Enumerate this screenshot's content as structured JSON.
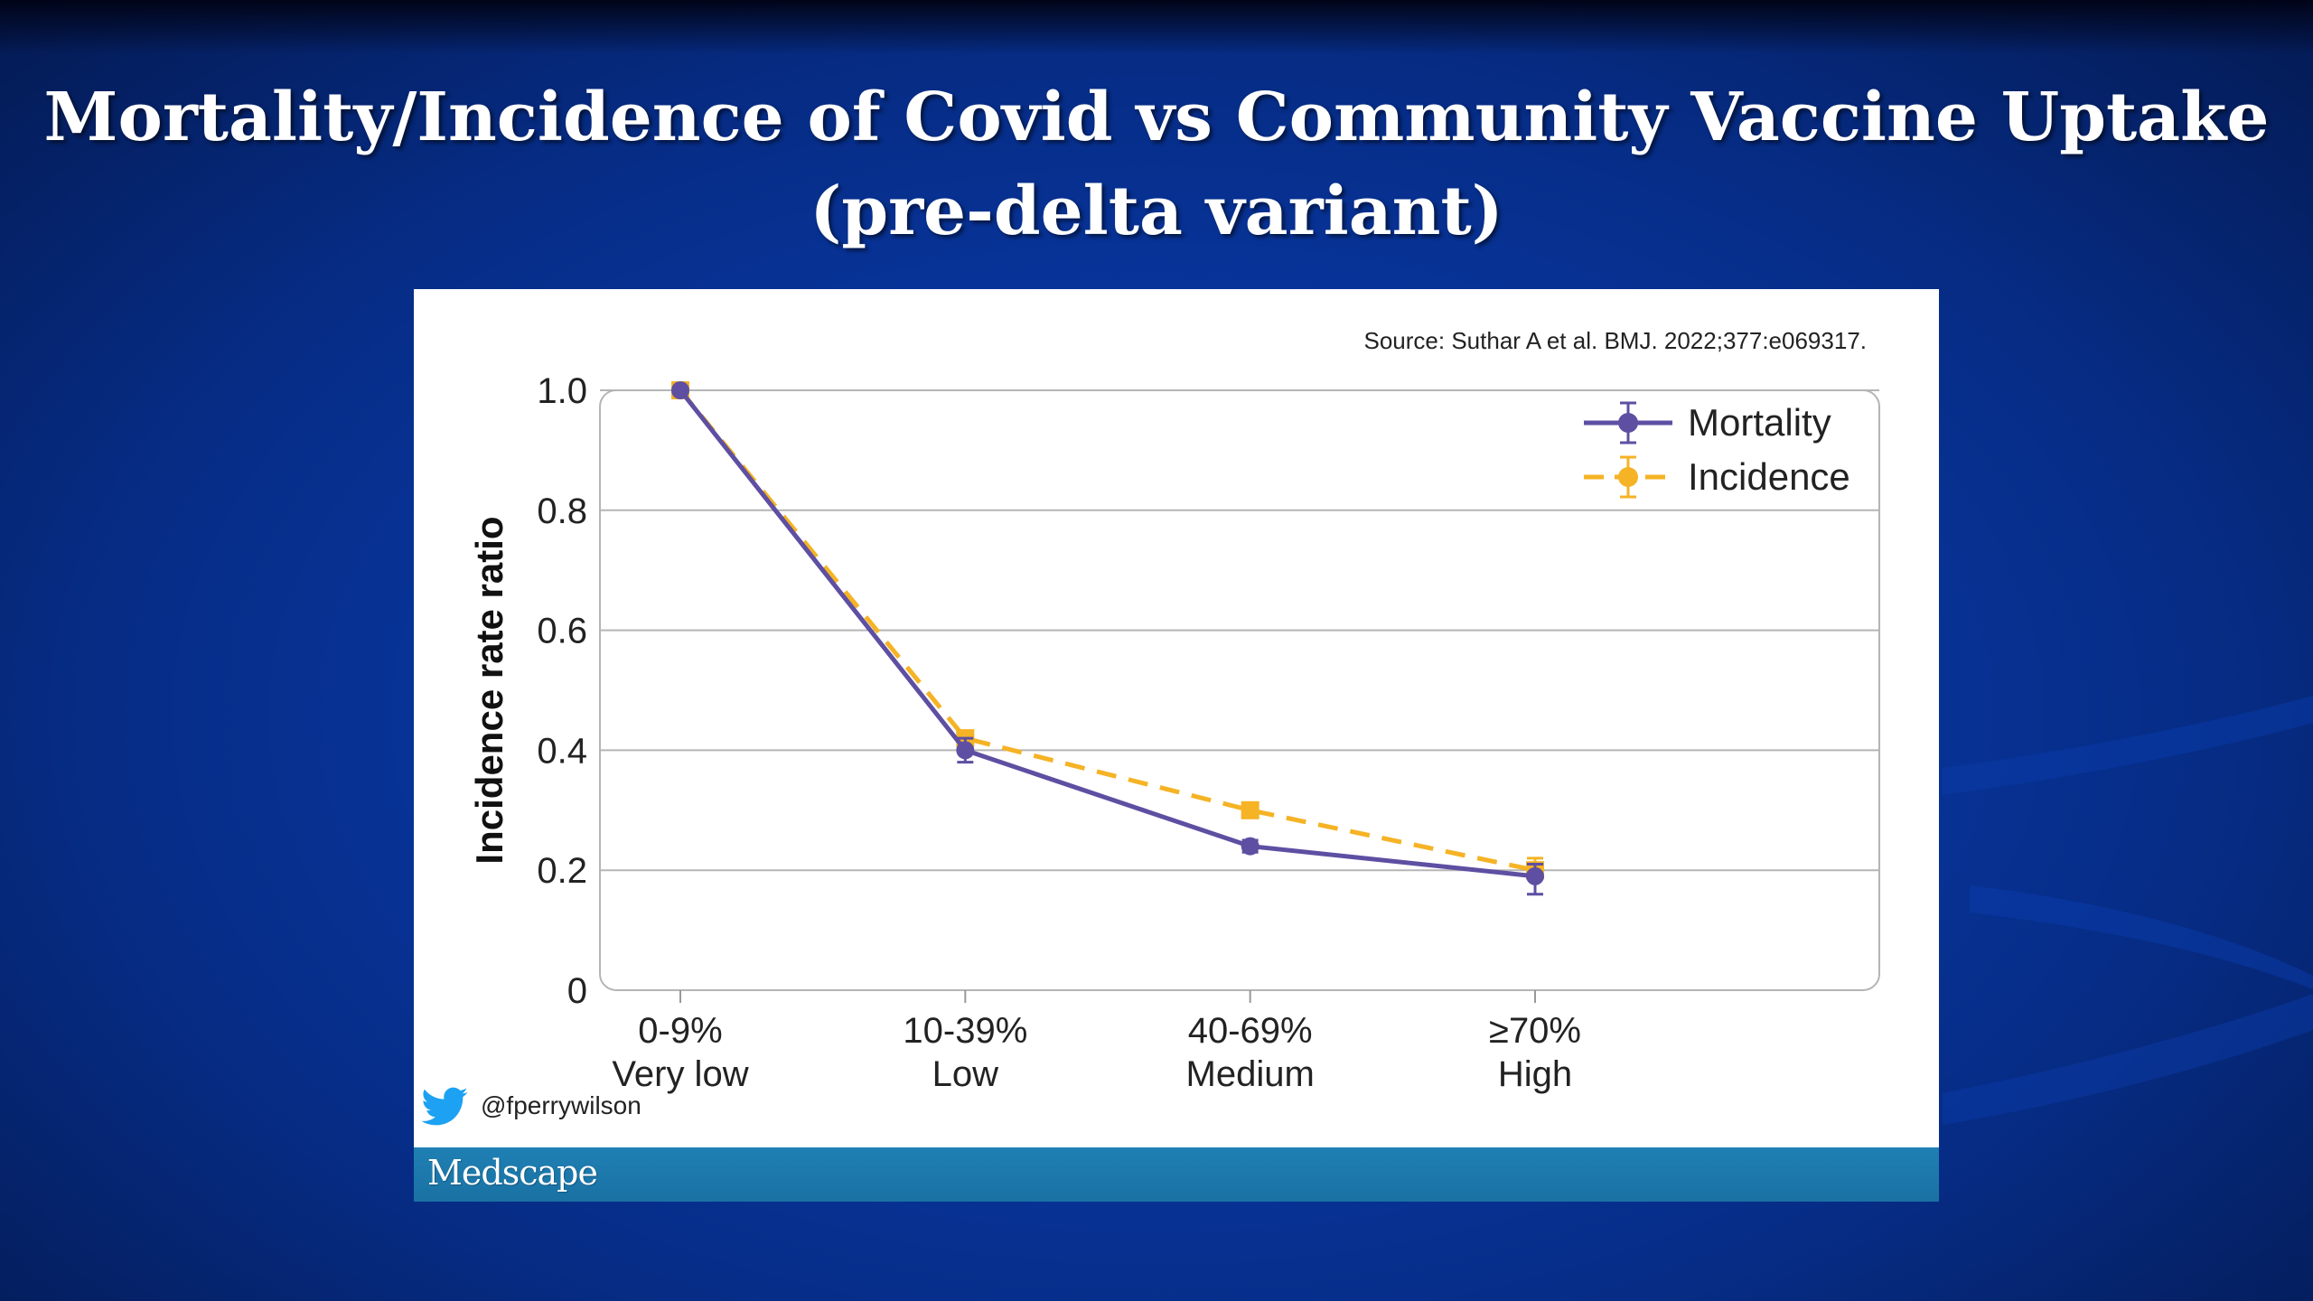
{
  "slide": {
    "title_line1": "Mortality/Incidence of Covid vs Community Vaccine Uptake",
    "title_line2": "(pre-delta variant)"
  },
  "panel": {
    "source": "Source: Suthar A et al. BMJ. 2022;377:e069317.",
    "handle": "@fperrywilson",
    "footer_brand": "Medscape"
  },
  "colors": {
    "mortality": "#5e4fa2",
    "incidence": "#f5b325",
    "twitter": "#1da1f2",
    "footer": "#1a76a8"
  },
  "chart_data": {
    "type": "line",
    "ylabel": "Incidence rate ratio",
    "ylim": [
      0,
      1.0
    ],
    "yticks": [
      {
        "value": 0,
        "label": "0"
      },
      {
        "value": 0.2,
        "label": "0.2"
      },
      {
        "value": 0.4,
        "label": "0.4"
      },
      {
        "value": 0.6,
        "label": "0.6"
      },
      {
        "value": 0.8,
        "label": "0.8"
      },
      {
        "value": 1.0,
        "label": "1.0"
      }
    ],
    "categories": [
      {
        "top": "0-9%",
        "bottom": "Very low"
      },
      {
        "top": "10-39%",
        "bottom": "Low"
      },
      {
        "top": "40-69%",
        "bottom": "Medium"
      },
      {
        "top": "≥70%",
        "bottom": "High"
      }
    ],
    "legend_position": "top-right",
    "grid": true,
    "series": [
      {
        "name": "Mortality",
        "style": "solid",
        "color": "#5e4fa2",
        "values": [
          1.0,
          0.4,
          0.24,
          0.19
        ],
        "error_low": [
          1.0,
          0.38,
          0.23,
          0.16
        ],
        "error_high": [
          1.0,
          0.42,
          0.25,
          0.21
        ]
      },
      {
        "name": "Incidence",
        "style": "dashed",
        "color": "#f5b325",
        "values": [
          1.0,
          0.42,
          0.3,
          0.2
        ],
        "error_low": [
          1.0,
          0.41,
          0.29,
          0.19
        ],
        "error_high": [
          1.0,
          0.43,
          0.31,
          0.22
        ]
      }
    ]
  }
}
